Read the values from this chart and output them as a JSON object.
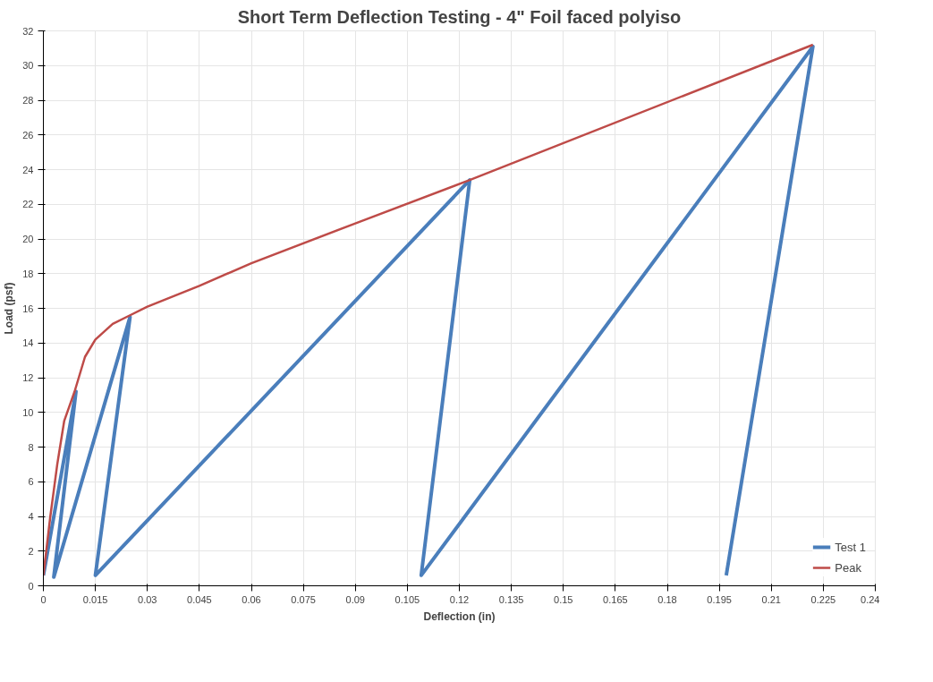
{
  "chart_data": {
    "type": "line",
    "title": "Short Term Deflection Testing - 4\" Foil faced polyiso",
    "xlabel": "Deflection (in)",
    "ylabel": "Load (psf)",
    "xlim": [
      0,
      0.24
    ],
    "xticks": [
      0,
      0.015,
      0.03,
      0.045,
      0.06,
      0.075,
      0.09,
      0.105,
      0.12,
      0.135,
      0.15,
      0.165,
      0.18,
      0.195,
      0.21,
      0.225,
      0.24
    ],
    "ylim": [
      0,
      32
    ],
    "yticks": [
      0,
      2,
      4,
      6,
      8,
      10,
      12,
      14,
      16,
      18,
      20,
      22,
      24,
      26,
      28,
      30,
      32
    ],
    "grid": true,
    "legend": "bottom right",
    "marker": "none",
    "line_style": "solid",
    "series": [
      {
        "name": "Test 1",
        "color": "#4a7ebb",
        "x": [
          0,
          0.0094,
          0.003,
          0.025,
          0.015,
          0.123,
          0.109,
          0.222,
          0.197
        ],
        "values": [
          0.6,
          11.2,
          0.5,
          15.5,
          0.6,
          23.4,
          0.6,
          31.1,
          0.6
        ]
      },
      {
        "name": "Peak",
        "color": "#be4b48",
        "x": [
          0,
          0.002,
          0.004,
          0.006,
          0.009,
          0.012,
          0.015,
          0.02,
          0.025,
          0.03,
          0.045,
          0.06,
          0.09,
          0.123,
          0.222
        ],
        "values": [
          0.6,
          4,
          7,
          9.5,
          11.2,
          13.2,
          14.2,
          15.1,
          15.6,
          16.1,
          17.3,
          18.6,
          20.9,
          23.4,
          31.2
        ]
      }
    ]
  }
}
